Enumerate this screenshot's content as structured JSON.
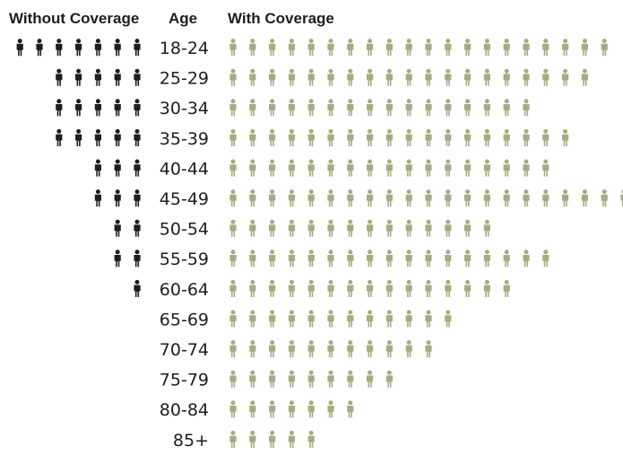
{
  "chart_data": {
    "type": "pictograph",
    "headers": {
      "without": "Without Coverage",
      "age": "Age",
      "with": "With Coverage"
    },
    "categories": [
      "18-24",
      "25-29",
      "30-34",
      "35-39",
      "40-44",
      "45-49",
      "50-54",
      "55-59",
      "60-64",
      "65-69",
      "70-74",
      "75-79",
      "80-84",
      "85+"
    ],
    "series": [
      {
        "name": "Without Coverage",
        "values": [
          7,
          5,
          5,
          5,
          3,
          3,
          2,
          2,
          1,
          0,
          0,
          0,
          0,
          0
        ]
      },
      {
        "name": "With Coverage",
        "values": [
          20,
          19,
          16,
          18,
          17,
          21,
          14,
          17,
          15,
          12,
          11,
          9,
          7,
          5
        ]
      }
    ],
    "colors": {
      "without": "#1e1e1e",
      "with": "#a6ac82",
      "text": "#1e1e1e"
    }
  }
}
